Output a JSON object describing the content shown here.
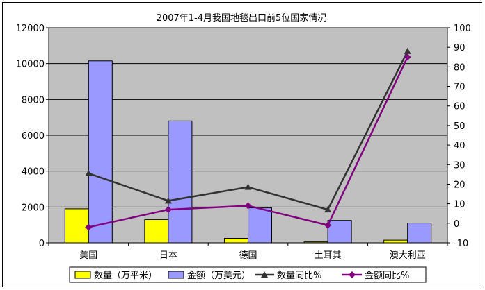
{
  "chart_data": {
    "type": "bar",
    "title": "2007年1-4月我国地毯出口前5位国家情况",
    "categories": [
      "美国",
      "日本",
      "德国",
      "土耳其",
      "澳大利亚"
    ],
    "series": [
      {
        "name": "数量（万平米）",
        "type": "bar",
        "axis": "left",
        "color": "#ffff00",
        "values": [
          1900,
          1300,
          250,
          50,
          150
        ]
      },
      {
        "name": "金额（万美元）",
        "type": "bar",
        "axis": "left",
        "color": "#9999ff",
        "values": [
          10150,
          6800,
          1950,
          1250,
          1100
        ]
      },
      {
        "name": "数量同比%",
        "type": "line",
        "axis": "right",
        "color": "#333333",
        "marker": "triangle",
        "values": [
          25.5,
          11.5,
          18.5,
          7,
          88
        ]
      },
      {
        "name": "金额同比%",
        "type": "line",
        "axis": "right",
        "color": "#800080",
        "marker": "diamond",
        "values": [
          -2,
          7,
          9,
          -1,
          85
        ]
      }
    ],
    "left_axis": {
      "min": 0,
      "max": 12000,
      "ticks": [
        "0",
        "2000",
        "4000",
        "6000",
        "8000",
        "10000",
        "12000"
      ]
    },
    "right_axis": {
      "min": -10,
      "max": 100,
      "ticks": [
        "-10",
        "0",
        "10",
        "20",
        "30",
        "40",
        "50",
        "60",
        "70",
        "80",
        "90",
        "100"
      ]
    },
    "grid": true,
    "legend": "bottom",
    "plot_background": "#c0c0c0"
  }
}
